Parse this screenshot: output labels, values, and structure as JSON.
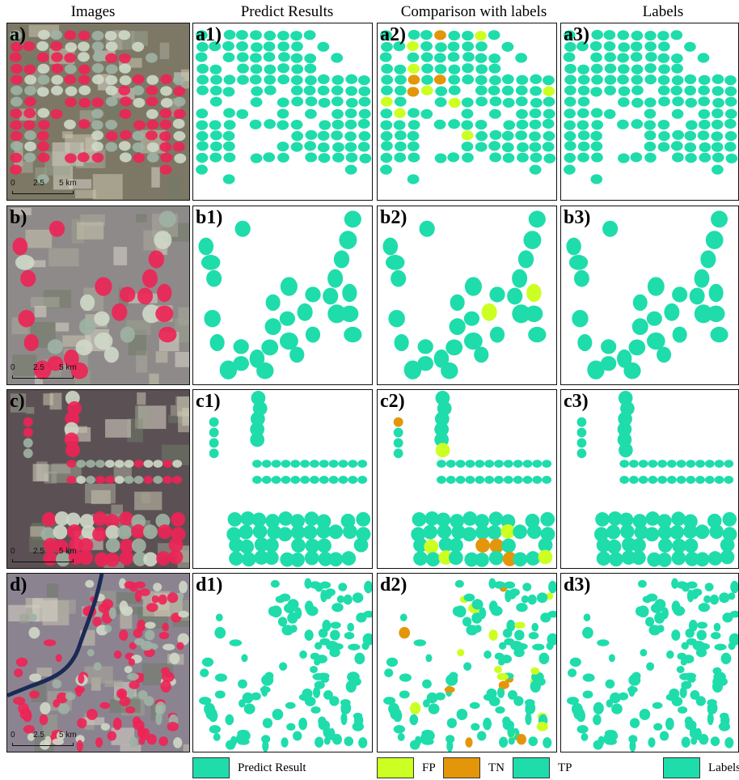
{
  "headers": {
    "images": "Images",
    "predict": "Predict Results",
    "comparison": "Comparison with labels",
    "labels": "Labels"
  },
  "panel_labels": {
    "a": "a)",
    "a1": "a1)",
    "a2": "a2)",
    "a3": "a3)",
    "b": "b)",
    "b1": "b1)",
    "b2": "b2)",
    "b3": "b3)",
    "c": "c)",
    "c1": "c1)",
    "c2": "c2)",
    "c3": "c3)",
    "d": "d)",
    "d1": "d1)",
    "d2": "d2)",
    "d3": "d3)"
  },
  "scale": {
    "zero": "0",
    "mid": "2.5",
    "end": "5 km"
  },
  "legend": {
    "predict_result": "Predict Result",
    "fp": "FP",
    "tn": "TN",
    "tp": "TP",
    "labels": "Labels"
  },
  "colors": {
    "field": "#1fdcab",
    "fp": "#ccff22",
    "tn": "#e3960a",
    "tp": "#1fdcab",
    "crop_red": "#ee2255",
    "panel_border": "#111111"
  }
}
